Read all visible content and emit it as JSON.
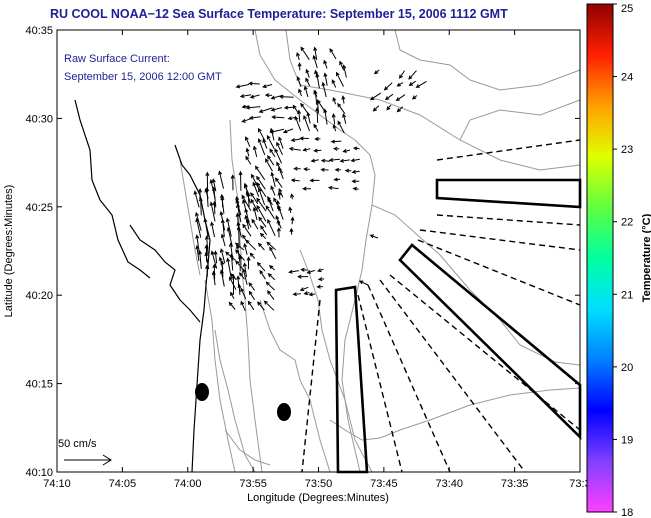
{
  "title": "RU COOL  NOAA−12  Sea Surface Temperature:  September 15, 2006 1112 GMT",
  "current_label": {
    "line1": "Raw Surface Current:",
    "line2": "September 15, 2006 12:00 GMT"
  },
  "scale_label": "50 cm/s",
  "axes": {
    "xlabel": "Longitude (Degrees:Minutes)",
    "ylabel": "Latitude (Degrees:Minutes)",
    "x_ticks": [
      "74:10",
      "74:05",
      "74:00",
      "73:55",
      "73:50",
      "73:45",
      "73:40",
      "73:35",
      "73:3"
    ],
    "y_ticks": [
      "40:35",
      "40:30",
      "40:25",
      "40:20",
      "40:15",
      "40:10"
    ]
  },
  "colorbar": {
    "title": "Temperature (°C)",
    "min": 18,
    "max": 25,
    "ticks": [
      "25",
      "24",
      "23",
      "22",
      "21",
      "20",
      "19",
      "18"
    ],
    "colors": [
      "#ff40ff",
      "#8040ff",
      "#0000ff",
      "#0080ff",
      "#00e0ff",
      "#00ffa0",
      "#60ff40",
      "#e0ff00",
      "#ffa000",
      "#ff2000",
      "#900000"
    ]
  },
  "colors": {
    "title": "#1e1e96",
    "vectors": "#000000",
    "contours": "#9a9a9a"
  }
}
